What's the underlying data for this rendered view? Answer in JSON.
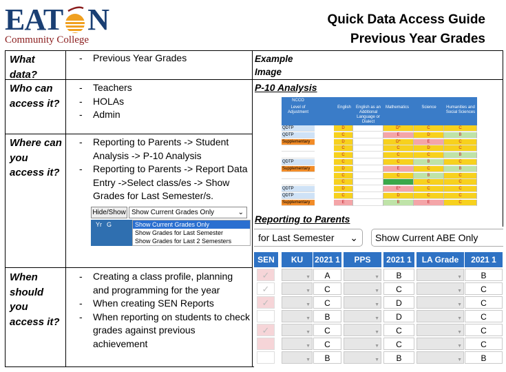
{
  "header": {
    "logo_main": "EAT",
    "logo_main_end": "N",
    "logo_sub": "Community College",
    "title_line1": "Quick Data Access Guide",
    "title_line2": "Previous Year Grades"
  },
  "rows": [
    {
      "question": "What data?",
      "answers": [
        "Previous Year Grades"
      ]
    },
    {
      "question": "Who can access it?",
      "answers": [
        "Teachers",
        "HOLAs",
        "Admin"
      ]
    },
    {
      "question": "Where can you access it?",
      "answers": [
        "Reporting to Parents -> Student Analysis -> P-10 Analysis",
        "Reporting to Parents -> Report Data Entry ->Select class/es -> Show Grades for Last Semester/s."
      ]
    },
    {
      "question": "When should you access it?",
      "answers": [
        "Creating a class profile, planning and programming for the year",
        "When creating SEN Reports",
        "When reporting on students to check grades against previous achievement"
      ]
    }
  ],
  "example": {
    "label": "Example Image",
    "section1": "P-10 Analysis",
    "section2": "Reporting to Parents"
  },
  "hide_show": {
    "button": "Hide/Show",
    "selected": "Show Current Grades Only",
    "col1": "Yr",
    "col2": "G",
    "options": [
      "Show Current Grades Only",
      "Show Grades for Last Semester",
      "Show Grades for Last 2 Semesters"
    ]
  },
  "p10": {
    "ncco": "NCCO",
    "level": "Level of Adjustment",
    "subjects": [
      "English",
      "English as an Additional Language or Dialect",
      "Mathematics",
      "Science",
      "Humanities and Social Sciences"
    ],
    "rows": [
      {
        "label": "QDTP",
        "grades": [
          "D",
          "",
          "D*",
          "C",
          "C"
        ]
      },
      {
        "label": "QDTP",
        "grades": [
          "C",
          "",
          "E",
          "D",
          "B"
        ]
      },
      {
        "label": "Supplementary",
        "grades": [
          "D",
          "",
          "D*",
          "E",
          "C"
        ]
      },
      {
        "label": "",
        "grades": [
          "C",
          "",
          "C",
          "D",
          "C"
        ]
      },
      {
        "label": "",
        "grades": [
          "C",
          "",
          "C",
          "C",
          "B"
        ]
      },
      {
        "label": "QDTP",
        "grades": [
          "C",
          "",
          "C",
          "B",
          "C"
        ]
      },
      {
        "label": "Supplementary",
        "grades": [
          "D",
          "",
          "E",
          "C",
          "B"
        ]
      },
      {
        "label": "",
        "grades": [
          "C",
          "",
          "C",
          "B",
          "C"
        ]
      },
      {
        "label": "",
        "grades": [
          "C",
          "",
          "",
          "C",
          "C"
        ]
      },
      {
        "label": "QDTP",
        "grades": [
          "D",
          "",
          "E*",
          "C",
          "C"
        ]
      },
      {
        "label": "QDTP",
        "grades": [
          "C",
          "",
          "D",
          "C",
          "C"
        ]
      },
      {
        "label": "Supplementary",
        "grades": [
          "E",
          "",
          "B",
          "E",
          "C"
        ]
      }
    ]
  },
  "reporting": {
    "select1": "for Last Semester",
    "select2": "Show Current ABE Only",
    "headers": [
      "SEN",
      "KU",
      "2021 1",
      "PPS",
      "2021 1",
      "LA Grade",
      "2021 1"
    ],
    "rows": [
      {
        "a": "A",
        "b": "B",
        "c": "B"
      },
      {
        "a": "C",
        "b": "C",
        "c": "C"
      },
      {
        "a": "C",
        "b": "D",
        "c": "C"
      },
      {
        "a": "B",
        "b": "D",
        "c": "C"
      },
      {
        "a": "C",
        "b": "C",
        "c": "C"
      },
      {
        "a": "C",
        "b": "C",
        "c": "C"
      },
      {
        "a": "B",
        "b": "B",
        "c": "B"
      }
    ]
  },
  "colors": {
    "logo_blue": "#1a3f73",
    "logo_red": "#8a1c1c",
    "logo_orange": "#f0a020",
    "header_blue": "#2e72c4",
    "grade_red": "#f4a5a8",
    "grade_yellow": "#f7d11e",
    "grade_green": "#bfe3a8",
    "supplementary_orange": "#f28c28",
    "qdtp_blue": "#cfe2f6"
  }
}
